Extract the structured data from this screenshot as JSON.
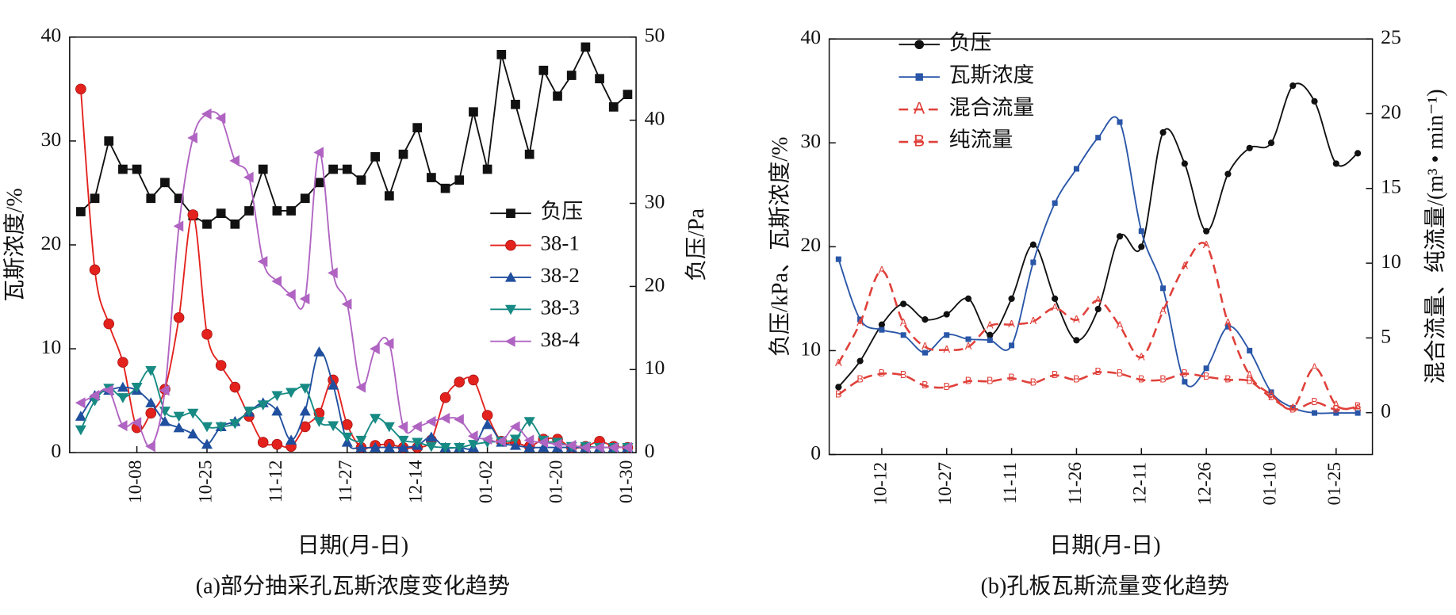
{
  "chart_data": [
    {
      "type": "line",
      "title": "(a)部分抽采孔瓦斯浓度变化趋势",
      "xlabel": "日期(月-日)",
      "ylabel": "瓦斯浓度/%",
      "y2label": "负压/Pa",
      "categories": [
        null,
        null,
        null,
        null,
        "10-08",
        null,
        null,
        null,
        null,
        "10-25",
        null,
        null,
        null,
        null,
        "11-12",
        null,
        null,
        null,
        null,
        "11-27",
        null,
        null,
        null,
        null,
        "12-14",
        null,
        null,
        null,
        null,
        "01-02",
        null,
        null,
        null,
        null,
        "01-20",
        null,
        null,
        null,
        null,
        "01-30"
      ],
      "ylim": [
        0,
        40
      ],
      "yticks": [
        0,
        10,
        20,
        30,
        40
      ],
      "y2lim": [
        0,
        50
      ],
      "y2ticks": [
        0,
        10,
        20,
        30,
        40,
        50
      ],
      "legend": "center right",
      "series": [
        {
          "name": "负压",
          "color": "#111111",
          "marker": "square",
          "smooth": false,
          "axis": "y2",
          "values": [
            29,
            30.6,
            37.5,
            34.1,
            34.1,
            30.6,
            32.5,
            30.6,
            28.5,
            27.5,
            28.8,
            27.5,
            29.1,
            34.1,
            29.1,
            29.1,
            30.6,
            32.5,
            34.1,
            34.1,
            32.8,
            35.6,
            30.9,
            35.9,
            39.1,
            33.1,
            31.8,
            32.8,
            41,
            34.1,
            47.9,
            41.9,
            35.9,
            46,
            42.9,
            45.4,
            48.8,
            45,
            41.6,
            43.1
          ]
        },
        {
          "name": "38-1",
          "color": "#e3221d",
          "marker": "circle",
          "smooth": true,
          "values": [
            35,
            17.6,
            12.4,
            8.7,
            2.4,
            3.8,
            6.1,
            13,
            22.9,
            11.4,
            8.4,
            6.3,
            3.5,
            1,
            0.8,
            0.6,
            2.5,
            3.8,
            7,
            2.7,
            0.5,
            0.7,
            0.8,
            0.5,
            0.5,
            1.2,
            5.3,
            6.8,
            7,
            3.6,
            1.1,
            1,
            0.6,
            1.3,
            1.3,
            0.5,
            0.6,
            1.1,
            0.6,
            0.5
          ]
        },
        {
          "name": "38-2",
          "color": "#1f4f9e",
          "marker": "tri-up",
          "smooth": true,
          "values": [
            3.5,
            5.5,
            6,
            6.3,
            6,
            4.8,
            3,
            2.4,
            1.8,
            0.8,
            2.5,
            3,
            3.9,
            4.8,
            4,
            1.2,
            4,
            9.7,
            6.5,
            1,
            0.5,
            0.5,
            0.5,
            0.5,
            0.7,
            1.5,
            0.5,
            0.5,
            0.5,
            2.7,
            1,
            0.7,
            0.5,
            0.5,
            0.5,
            0.5,
            0.5,
            0.5,
            0.5,
            0.5
          ]
        },
        {
          "name": "38-3",
          "color": "#178a84",
          "marker": "tri-down",
          "smooth": true,
          "values": [
            2.2,
            5,
            6.2,
            5.3,
            6.3,
            7.9,
            4,
            3.5,
            3.8,
            2.5,
            2.5,
            2.8,
            4,
            4.6,
            5.5,
            5.8,
            6.2,
            3,
            2.6,
            1.5,
            1.2,
            3.3,
            2.5,
            1.2,
            1,
            0.6,
            0.5,
            0.5,
            0.8,
            1,
            1.1,
            1.3,
            3,
            1.2,
            1,
            0.6,
            0.6,
            0.5,
            0.5,
            0.5
          ]
        },
        {
          "name": "38-4",
          "color": "#b064c2",
          "marker": "tri-left",
          "smooth": true,
          "values": [
            4.8,
            5.5,
            6,
            2.6,
            2.9,
            0.6,
            6,
            21.8,
            30.3,
            32.6,
            32.2,
            28.1,
            26.5,
            18.4,
            16.5,
            15.2,
            14.8,
            28.9,
            17.3,
            14.3,
            6.3,
            10,
            10.5,
            2.5,
            2.5,
            3,
            3.3,
            3.2,
            1.6,
            1.3,
            1.1,
            2.5,
            1.2,
            1,
            0.8,
            0.7,
            0.5,
            0.5,
            0.5,
            0.5
          ]
        }
      ]
    },
    {
      "type": "line",
      "title": "(b)孔板瓦斯流量变化趋势",
      "xlabel": "日期(月-日)",
      "ylabel": "负压/kPa、瓦斯浓度/%",
      "y2label": "混合流量、纯流量/(m³ • min⁻¹)",
      "categories": [
        null,
        null,
        "10-12",
        null,
        null,
        "10-27",
        null,
        null,
        "11-11",
        null,
        null,
        "11-26",
        null,
        null,
        "12-11",
        null,
        null,
        "12-26",
        null,
        null,
        "01-10",
        null,
        null,
        "01-25",
        null
      ],
      "ylim": [
        0,
        40
      ],
      "yticks": [
        0,
        10,
        20,
        30,
        40
      ],
      "y2lim": [
        -2.8,
        25
      ],
      "y2ticks": [
        0,
        5,
        10,
        15,
        20,
        25
      ],
      "legend": "upper left",
      "series": [
        {
          "name": "负压",
          "color": "#111111",
          "marker": "dot",
          "smooth": true,
          "values": [
            6.5,
            9,
            12.5,
            14.5,
            13,
            13.5,
            15,
            11.5,
            15,
            20.2,
            15,
            11,
            14,
            21,
            20,
            31,
            28,
            21.5,
            27,
            29.5,
            30,
            35.5,
            34,
            28,
            29
          ]
        },
        {
          "name": "瓦斯浓度",
          "color": "#2a56a8",
          "marker": "small-square",
          "smooth": true,
          "values": [
            18.8,
            13,
            12,
            11.5,
            9.8,
            11.5,
            11.1,
            11,
            10.5,
            18.5,
            24.2,
            27.5,
            30.5,
            32,
            21.5,
            16,
            7,
            8.3,
            12.3,
            10,
            6,
            4.5,
            4,
            4,
            4
          ]
        },
        {
          "name": "混合流量",
          "color": "#e0403a",
          "marker": "A",
          "smooth": true,
          "dash": true,
          "axis": "y2",
          "values": [
            3.3,
            6,
            9.5,
            6,
            4.4,
            4.2,
            4.4,
            5.8,
            5.9,
            6.1,
            7,
            6.2,
            7.5,
            5.8,
            3.7,
            6.8,
            9.8,
            11.2,
            6,
            2.5,
            1.2,
            0.3,
            3,
            0.5,
            0.3
          ]
        },
        {
          "name": "纯流量",
          "color": "#e0403a",
          "marker": "B",
          "smooth": true,
          "dash": true,
          "axis": "y2",
          "values": [
            1.2,
            2.2,
            2.6,
            2.5,
            1.8,
            1.7,
            2.1,
            2.1,
            2.3,
            2,
            2.5,
            2.2,
            2.7,
            2.6,
            2.2,
            2.2,
            2.6,
            2.4,
            2.2,
            2.1,
            1,
            0.2,
            0.7,
            0.2,
            0.4
          ]
        }
      ]
    }
  ]
}
